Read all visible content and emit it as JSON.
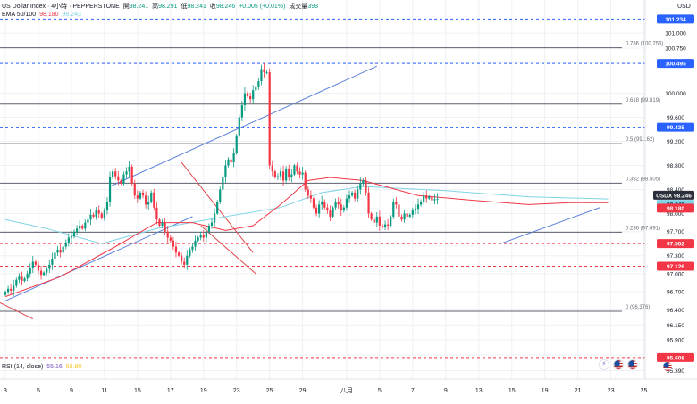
{
  "header": {
    "symbol_line": "US Dollar Index · 4小時 · PEPPERSTONE",
    "ohlc": [
      {
        "label": "開",
        "value": "98.241"
      },
      {
        "label": "高",
        "value": "98.291"
      },
      {
        "label": "低",
        "value": "98.241"
      },
      {
        "label": "收",
        "value": "98.246"
      }
    ],
    "change": "+0.005 (+0.01%)",
    "volume_label": "成交量",
    "volume_value": "393",
    "ema_label": "EMA 50/100",
    "ema50_value": "98.180",
    "ema100_value": "98.243"
  },
  "currency": "USD",
  "rsi": {
    "label": "RSI (14, close)",
    "value1": "55.16",
    "value2": "55.90"
  },
  "colors": {
    "up": "#089981",
    "down": "#f23645",
    "ema50": "#f23645",
    "ema100": "#7fd3e6",
    "trend": "#5b7fd8",
    "trend_red": "#e0474c",
    "blue_badge": "#2962ff",
    "red_badge": "#f23645",
    "fib_line": "#5d606b",
    "grid": "#eef0f4",
    "text": "#131722"
  },
  "chart_data": {
    "type": "candlestick",
    "ylim": [
      95.25,
      101.55
    ],
    "y_ticks": [
      "101.000",
      "100.750",
      "100.500",
      "100.000",
      "99.600",
      "99.200",
      "98.800",
      "98.400",
      "98.000",
      "97.700",
      "97.300",
      "97.000",
      "96.700",
      "96.400",
      "96.150",
      "95.900",
      "95.650",
      "95.390"
    ],
    "x_ticks": [
      {
        "label": "3",
        "bar": 0
      },
      {
        "label": "5",
        "bar": 12
      },
      {
        "label": "9",
        "bar": 24
      },
      {
        "label": "11",
        "bar": 36
      },
      {
        "label": "15",
        "bar": 48
      },
      {
        "label": "17",
        "bar": 60
      },
      {
        "label": "19",
        "bar": 72
      },
      {
        "label": "23",
        "bar": 84
      },
      {
        "label": "25",
        "bar": 96
      },
      {
        "label": "29",
        "bar": 108
      },
      {
        "label": "八月",
        "bar": 124
      },
      {
        "label": "5",
        "bar": 136
      },
      {
        "label": "7",
        "bar": 148
      },
      {
        "label": "9",
        "bar": 160
      },
      {
        "label": "13",
        "bar": 172
      },
      {
        "label": "15",
        "bar": 184
      },
      {
        "label": "19",
        "bar": 196
      },
      {
        "label": "21",
        "bar": 208
      },
      {
        "label": "23",
        "bar": 220
      },
      {
        "label": "25",
        "bar": 232
      }
    ],
    "closes": [
      96.7,
      96.75,
      96.72,
      96.8,
      96.9,
      96.95,
      96.88,
      96.92,
      97.0,
      97.1,
      97.2,
      97.15,
      97.05,
      96.98,
      97.02,
      97.08,
      97.15,
      97.25,
      97.35,
      97.4,
      97.35,
      97.45,
      97.52,
      97.6,
      97.62,
      97.7,
      97.75,
      97.8,
      97.75,
      97.85,
      97.9,
      97.98,
      97.95,
      98.05,
      98.0,
      97.92,
      98.05,
      98.2,
      98.6,
      98.7,
      98.62,
      98.55,
      98.5,
      98.65,
      98.7,
      98.78,
      98.5,
      98.3,
      98.25,
      98.35,
      98.3,
      98.15,
      98.2,
      98.35,
      98.1,
      97.9,
      97.8,
      97.85,
      97.7,
      97.6,
      97.55,
      97.45,
      97.35,
      97.3,
      97.2,
      97.15,
      97.3,
      97.4,
      97.45,
      97.55,
      97.6,
      97.65,
      97.6,
      97.7,
      97.8,
      97.85,
      98.0,
      98.2,
      98.4,
      98.6,
      98.8,
      98.9,
      98.85,
      99.0,
      99.3,
      99.6,
      99.8,
      100.0,
      99.95,
      99.9,
      100.05,
      100.1,
      100.2,
      100.4,
      100.35,
      100.35,
      98.8,
      98.7,
      98.6,
      98.62,
      98.7,
      98.55,
      98.75,
      98.6,
      98.65,
      98.8,
      98.7,
      98.65,
      98.68,
      98.4,
      98.3,
      98.25,
      98.1,
      98.0,
      98.15,
      98.2,
      98.1,
      98.05,
      97.95,
      98.1,
      98.2,
      98.15,
      98.05,
      98.1,
      98.25,
      98.3,
      98.35,
      98.25,
      98.4,
      98.5,
      98.55,
      98.35,
      98.0,
      97.9,
      97.85,
      97.95,
      97.8,
      97.78,
      97.82,
      97.8,
      97.95,
      98.2,
      98.15,
      97.95,
      97.9,
      98.0,
      97.95,
      97.98,
      98.05,
      98.08,
      98.15,
      98.2,
      98.3,
      98.25,
      98.28,
      98.22,
      98.24,
      98.246
    ],
    "ema50": [
      {
        "bar": 0,
        "y": 96.62
      },
      {
        "bar": 20,
        "y": 96.95
      },
      {
        "bar": 40,
        "y": 97.45
      },
      {
        "bar": 55,
        "y": 97.85
      },
      {
        "bar": 68,
        "y": 97.85
      },
      {
        "bar": 80,
        "y": 97.72
      },
      {
        "bar": 90,
        "y": 97.8
      },
      {
        "bar": 100,
        "y": 98.15
      },
      {
        "bar": 110,
        "y": 98.55
      },
      {
        "bar": 118,
        "y": 98.6
      },
      {
        "bar": 130,
        "y": 98.55
      },
      {
        "bar": 150,
        "y": 98.3
      },
      {
        "bar": 170,
        "y": 98.22
      },
      {
        "bar": 190,
        "y": 98.15
      },
      {
        "bar": 205,
        "y": 98.18
      },
      {
        "bar": 219,
        "y": 98.18
      }
    ],
    "ema100": [
      {
        "bar": 0,
        "y": 97.9
      },
      {
        "bar": 15,
        "y": 97.75
      },
      {
        "bar": 35,
        "y": 97.5
      },
      {
        "bar": 55,
        "y": 97.75
      },
      {
        "bar": 80,
        "y": 97.95
      },
      {
        "bar": 100,
        "y": 98.1
      },
      {
        "bar": 115,
        "y": 98.35
      },
      {
        "bar": 130,
        "y": 98.45
      },
      {
        "bar": 160,
        "y": 98.38
      },
      {
        "bar": 190,
        "y": 98.28
      },
      {
        "bar": 219,
        "y": 98.243
      }
    ],
    "fib_levels": [
      {
        "label": "0.786 (100.756)",
        "y": 100.756
      },
      {
        "label": "0.618 (99.819)",
        "y": 99.819
      },
      {
        "label": "0.5 (99.162)",
        "y": 99.162
      },
      {
        "label": "0.382 (98.505)",
        "y": 98.505
      },
      {
        "label": "0.236 (97.691)",
        "y": 97.691
      },
      {
        "label": "0 (96.376)",
        "y": 96.376
      }
    ],
    "blue_levels": [
      {
        "label": "101.234",
        "y": 101.234
      },
      {
        "label": "100.495",
        "y": 100.495
      },
      {
        "label": "99.435",
        "y": 99.435
      }
    ],
    "red_levels": [
      {
        "label": "97.502",
        "y": 97.502
      },
      {
        "label": "97.126",
        "y": 97.126
      },
      {
        "label": "95.608",
        "y": 95.608
      }
    ],
    "badges": [
      {
        "label": "USDX 98.246",
        "y": 98.246,
        "color": "#2b2f3a"
      },
      {
        "label": "98.243",
        "y": 98.243,
        "color": "#7fd3e6"
      },
      {
        "label": "98.180",
        "y": 98.18,
        "color": "#f23645"
      }
    ],
    "trendlines": [
      {
        "b1": 0,
        "y1": 96.55,
        "b2": 68,
        "y2": 97.95,
        "color": "blue"
      },
      {
        "b1": 38,
        "y1": 98.45,
        "b2": 135,
        "y2": 100.45,
        "color": "blue"
      },
      {
        "b1": -10,
        "y1": 96.7,
        "b2": 10,
        "y2": 96.25,
        "color": "red"
      },
      {
        "b1": 64,
        "y1": 98.85,
        "b2": 90,
        "y2": 97.35,
        "color": "red"
      },
      {
        "b1": 71,
        "y1": 97.8,
        "b2": 91,
        "y2": 97.0,
        "color": "red"
      },
      {
        "b1": 180,
        "y1": 97.5,
        "b2": 216,
        "y2": 98.1,
        "color": "blue"
      }
    ]
  }
}
